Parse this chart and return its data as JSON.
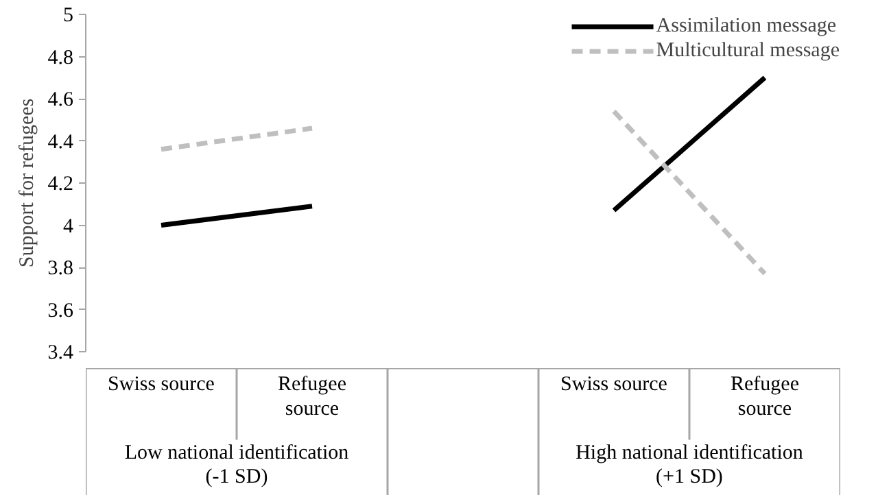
{
  "chart_data": {
    "type": "line",
    "ylabel": "Support for refugees",
    "categories": [
      "Swiss source",
      "Refugee source",
      null,
      "Swiss source",
      "Refugee source"
    ],
    "series": [
      {
        "name": "Assimilation message",
        "color": "#000000",
        "line_style": "solid",
        "values": [
          4.0,
          4.09,
          null,
          4.07,
          4.7
        ]
      },
      {
        "name": "Multicultural message",
        "color": "#bfbfbf",
        "line_style": "dashed",
        "values": [
          4.36,
          4.46,
          null,
          4.54,
          3.77
        ]
      }
    ],
    "annotations": [
      "Low national identification (-1 SD)",
      "High national identification (+1 SD)"
    ],
    "ylim": [
      3.4,
      5
    ],
    "yticks": [
      3.4,
      3.6,
      3.8,
      4,
      4.2,
      4.4,
      4.6,
      4.8,
      5
    ],
    "grid": false,
    "legend": "top right",
    "marker": "none"
  }
}
